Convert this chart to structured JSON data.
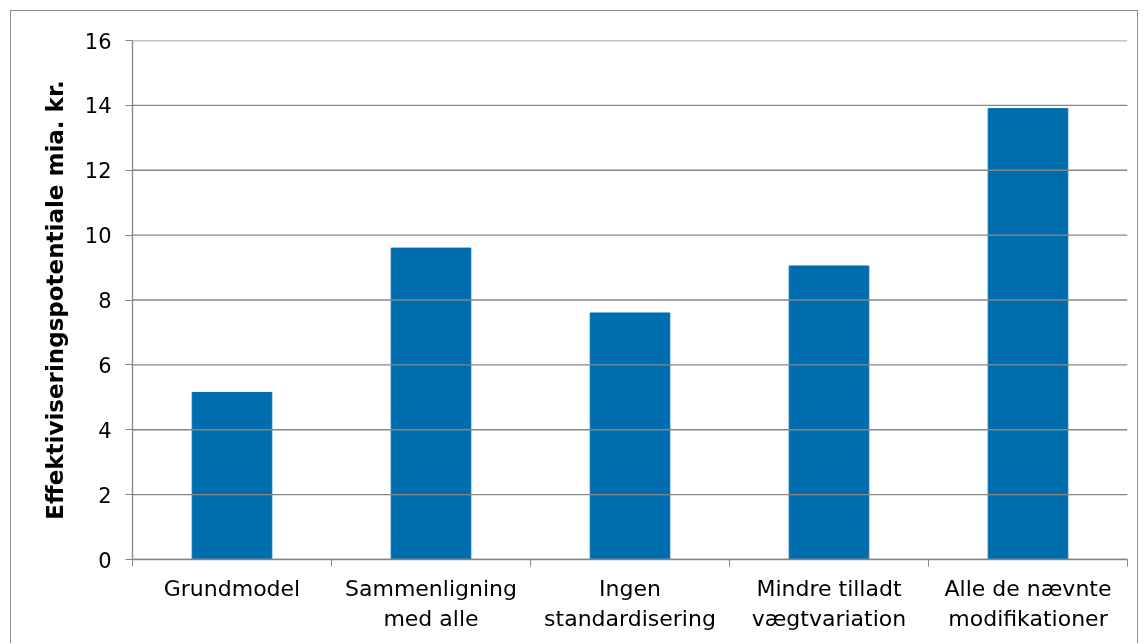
{
  "chart_data": {
    "type": "bar",
    "ylabel": "Effektiviseringspotentiale mia. kr.",
    "categories": [
      "Grundmodel",
      "Sammenligning\nmed alle",
      "Ingen\nstandardisering",
      "Mindre tilladt\nvægtvariation",
      "Alle de nævnte\nmodifikationer"
    ],
    "values": [
      5.15,
      9.6,
      7.6,
      9.05,
      13.9
    ],
    "color": "#006eae",
    "ylim": [
      0,
      16
    ],
    "yticks": [
      0,
      2,
      4,
      6,
      8,
      10,
      12,
      14,
      16
    ],
    "grid": "y"
  }
}
